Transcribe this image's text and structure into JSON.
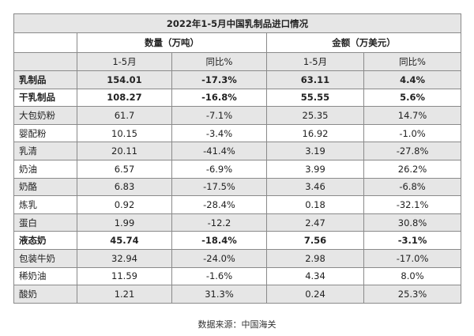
{
  "table": {
    "title": "2022年1-5月中国乳制品进口情况",
    "groups": [
      {
        "label": "数量（万吨）"
      },
      {
        "label": "金额（万美元）"
      }
    ],
    "subheaders": [
      "1-5月",
      "同比%",
      "1-5月",
      "同比%"
    ],
    "rows": [
      {
        "name": "乳制品",
        "qty": "154.01",
        "qty_yoy": "-17.3%",
        "amt": "63.11",
        "amt_yoy": "4.4%"
      },
      {
        "name": "干乳制品",
        "qty": "108.27",
        "qty_yoy": "-16.8%",
        "amt": "55.55",
        "amt_yoy": "5.6%"
      },
      {
        "name": "大包奶粉",
        "qty": "61.7",
        "qty_yoy": "-7.1%",
        "amt": "25.35",
        "amt_yoy": "14.7%"
      },
      {
        "name": "婴配粉",
        "qty": "10.15",
        "qty_yoy": "-3.4%",
        "amt": "16.92",
        "amt_yoy": "-1.0%"
      },
      {
        "name": "乳清",
        "qty": "20.11",
        "qty_yoy": "-41.4%",
        "amt": "3.19",
        "amt_yoy": "-27.8%"
      },
      {
        "name": "奶油",
        "qty": "6.57",
        "qty_yoy": "-6.9%",
        "amt": "3.99",
        "amt_yoy": "26.2%"
      },
      {
        "name": "奶酪",
        "qty": "6.83",
        "qty_yoy": "-17.5%",
        "amt": "3.46",
        "amt_yoy": "-6.8%"
      },
      {
        "name": "炼乳",
        "qty": "0.92",
        "qty_yoy": "-28.4%",
        "amt": "0.18",
        "amt_yoy": "-32.1%"
      },
      {
        "name": "蛋白",
        "qty": "1.99",
        "qty_yoy": "-12.2",
        "amt": "2.47",
        "amt_yoy": "30.8%"
      },
      {
        "name": "液态奶",
        "qty": "45.74",
        "qty_yoy": "-18.4%",
        "amt": "7.56",
        "amt_yoy": "-3.1%"
      },
      {
        "name": "包装牛奶",
        "qty": "32.94",
        "qty_yoy": "-24.0%",
        "amt": "2.98",
        "amt_yoy": "-17.0%"
      },
      {
        "name": "稀奶油",
        "qty": "11.59",
        "qty_yoy": "-1.6%",
        "amt": "4.34",
        "amt_yoy": "8.0%"
      },
      {
        "name": "酸奶",
        "qty": "1.21",
        "qty_yoy": "31.3%",
        "amt": "0.24",
        "amt_yoy": "25.3%"
      }
    ]
  },
  "footer": {
    "source": "数据来源：中国海关"
  },
  "colors": {
    "shade": "#e6e6e6",
    "border": "#8a8a8a",
    "text": "#222222"
  }
}
